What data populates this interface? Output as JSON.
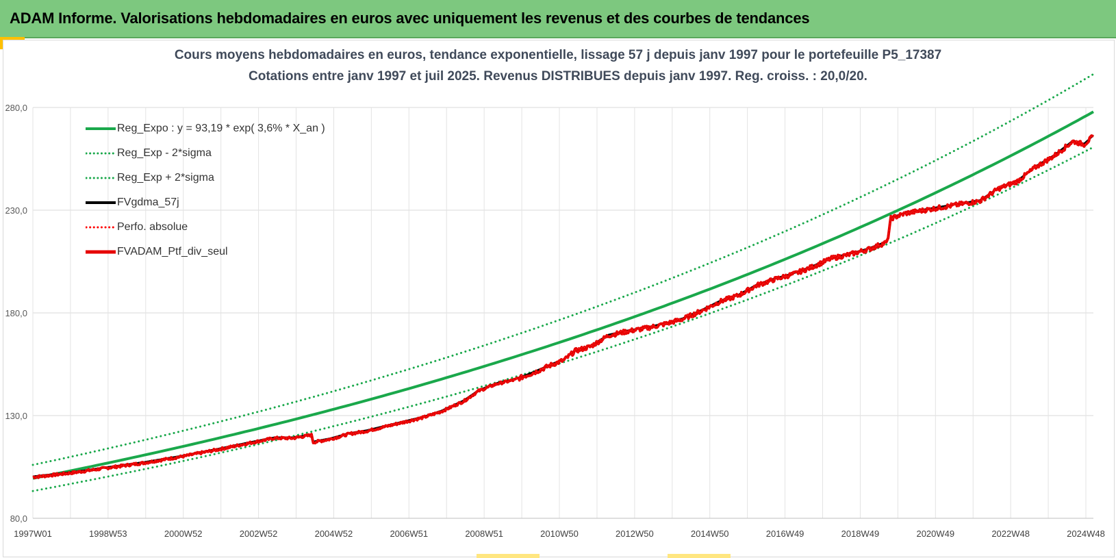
{
  "header": {
    "title": "ADAM Informe. Valorisations hebdomadaires en euros avec uniquement les revenus et des courbes de tendances"
  },
  "chart_data": {
    "type": "line",
    "title": "Cours moyens hebdomadaires  en euros, tendance exponentielle, lissage 57 j depuis janv 1997 pour le portefeuille P5_17387",
    "subtitle": "Cotations  entre janv 1997 et juil 2025. Revenus DISTRIBUES depuis janv 1997. Reg. croiss. : 20,0/20.",
    "xlabel": "",
    "ylabel": "",
    "x_tick_labels": [
      "1997W01",
      "1998W53",
      "2000W52",
      "2002W52",
      "2004W52",
      "2006W51",
      "2008W51",
      "2010W50",
      "2012W50",
      "2014W50",
      "2016W49",
      "2018W49",
      "2020W49",
      "2022W48",
      "2024W48"
    ],
    "x_range_years": [
      1997.0,
      2025.55
    ],
    "ylim": [
      80,
      280
    ],
    "y_ticks": [
      "80,0",
      "130,0",
      "180,0",
      "230,0",
      "280,0"
    ],
    "y_tick_values": [
      80,
      130,
      180,
      230,
      280
    ],
    "grid": true,
    "legend_position": "top-left",
    "regression": {
      "a": 93.19,
      "rate": 0.036,
      "sigma_band_factor": 1.066
    },
    "series": [
      {
        "name": "Reg_Expo : y = 93,19 * exp( 3,6% *  X_an )",
        "style": "solid",
        "color": "#1aa84b"
      },
      {
        "name": "Reg_Exp - 2*sigma",
        "style": "dotted",
        "color": "#1aa84b"
      },
      {
        "name": "Reg_Exp + 2*sigma",
        "style": "dotted",
        "color": "#1aa84b"
      },
      {
        "name": "FVgdma_57j",
        "style": "solid",
        "color": "#000000"
      },
      {
        "name": "Perfo. absolue",
        "style": "dotted",
        "color": "#ff0000"
      },
      {
        "name": "FVADAM_Ptf_div_seul",
        "style": "solid",
        "color": "#e60000",
        "points": [
          [
            1997.0,
            100.0
          ],
          [
            1998.0,
            102.0
          ],
          [
            1999.0,
            104.5
          ],
          [
            2000.0,
            107.0
          ],
          [
            2001.0,
            110.0
          ],
          [
            2002.0,
            113.5
          ],
          [
            2002.8,
            116.5
          ],
          [
            2003.5,
            119.0
          ],
          [
            2004.0,
            119.0
          ],
          [
            2004.5,
            120.5
          ],
          [
            2004.55,
            117.0
          ],
          [
            2005.0,
            118.5
          ],
          [
            2005.5,
            121.0
          ],
          [
            2006.0,
            122.5
          ],
          [
            2006.8,
            126.0
          ],
          [
            2007.5,
            129.0
          ],
          [
            2008.0,
            132.0
          ],
          [
            2008.6,
            137.0
          ],
          [
            2009.0,
            142.0
          ],
          [
            2009.5,
            145.5
          ],
          [
            2010.0,
            147.5
          ],
          [
            2010.5,
            151.0
          ],
          [
            2011.0,
            155.0
          ],
          [
            2011.3,
            157.0
          ],
          [
            2011.6,
            161.5
          ],
          [
            2012.0,
            163.5
          ],
          [
            2012.5,
            169.0
          ],
          [
            2013.0,
            171.0
          ],
          [
            2013.5,
            172.5
          ],
          [
            2014.0,
            174.5
          ],
          [
            2014.5,
            177.0
          ],
          [
            2015.0,
            181.0
          ],
          [
            2015.5,
            185.5
          ],
          [
            2016.0,
            188.5
          ],
          [
            2016.5,
            193.5
          ],
          [
            2017.0,
            196.5
          ],
          [
            2017.5,
            199.0
          ],
          [
            2018.0,
            202.5
          ],
          [
            2018.5,
            206.5
          ],
          [
            2019.0,
            208.5
          ],
          [
            2019.5,
            211.0
          ],
          [
            2020.0,
            214.5
          ],
          [
            2020.1,
            226.0
          ],
          [
            2020.5,
            228.5
          ],
          [
            2021.0,
            230.0
          ],
          [
            2021.5,
            231.5
          ],
          [
            2022.0,
            233.0
          ],
          [
            2022.5,
            234.5
          ],
          [
            2023.0,
            240.5
          ],
          [
            2023.5,
            244.0
          ],
          [
            2024.0,
            251.0
          ],
          [
            2024.5,
            256.5
          ],
          [
            2025.0,
            263.5
          ],
          [
            2025.3,
            262.0
          ],
          [
            2025.55,
            266.0
          ]
        ]
      }
    ]
  }
}
